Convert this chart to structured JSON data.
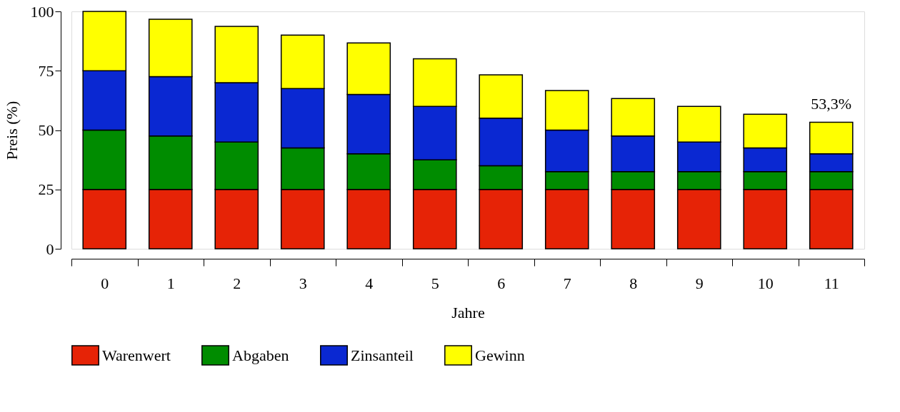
{
  "chart_data": {
    "type": "bar",
    "stacked": true,
    "xlabel": "Jahre",
    "ylabel": "Preis (%)",
    "categories": [
      "0",
      "1",
      "2",
      "3",
      "4",
      "5",
      "6",
      "7",
      "8",
      "9",
      "10",
      "11"
    ],
    "series": [
      {
        "name": "Warenwert",
        "color": "#e62306",
        "values": [
          25,
          25,
          25,
          25,
          25,
          25,
          25,
          25,
          25,
          25,
          25,
          25
        ]
      },
      {
        "name": "Abgaben",
        "color": "#008c00",
        "values": [
          25,
          22.5,
          20,
          17.5,
          15,
          12.5,
          10,
          7.5,
          7.5,
          7.5,
          7.5,
          7.5
        ]
      },
      {
        "name": "Zinsanteil",
        "color": "#0a28d2",
        "values": [
          25,
          25,
          25,
          25,
          25,
          22.5,
          20,
          17.5,
          15,
          12.5,
          10,
          7.5
        ]
      },
      {
        "name": "Gewinn",
        "color": "#ffff00",
        "values": [
          25,
          24.2,
          23.7,
          22.5,
          21.7,
          20,
          18.3,
          16.7,
          15.8,
          15,
          14.2,
          13.3
        ]
      }
    ],
    "ylim": [
      0,
      100
    ],
    "yticks": [
      0,
      25,
      50,
      75,
      100
    ],
    "grid": false,
    "legend": "bottom",
    "annotations": [
      {
        "text": "53,3%",
        "x": "11",
        "y": 53.3
      }
    ]
  }
}
